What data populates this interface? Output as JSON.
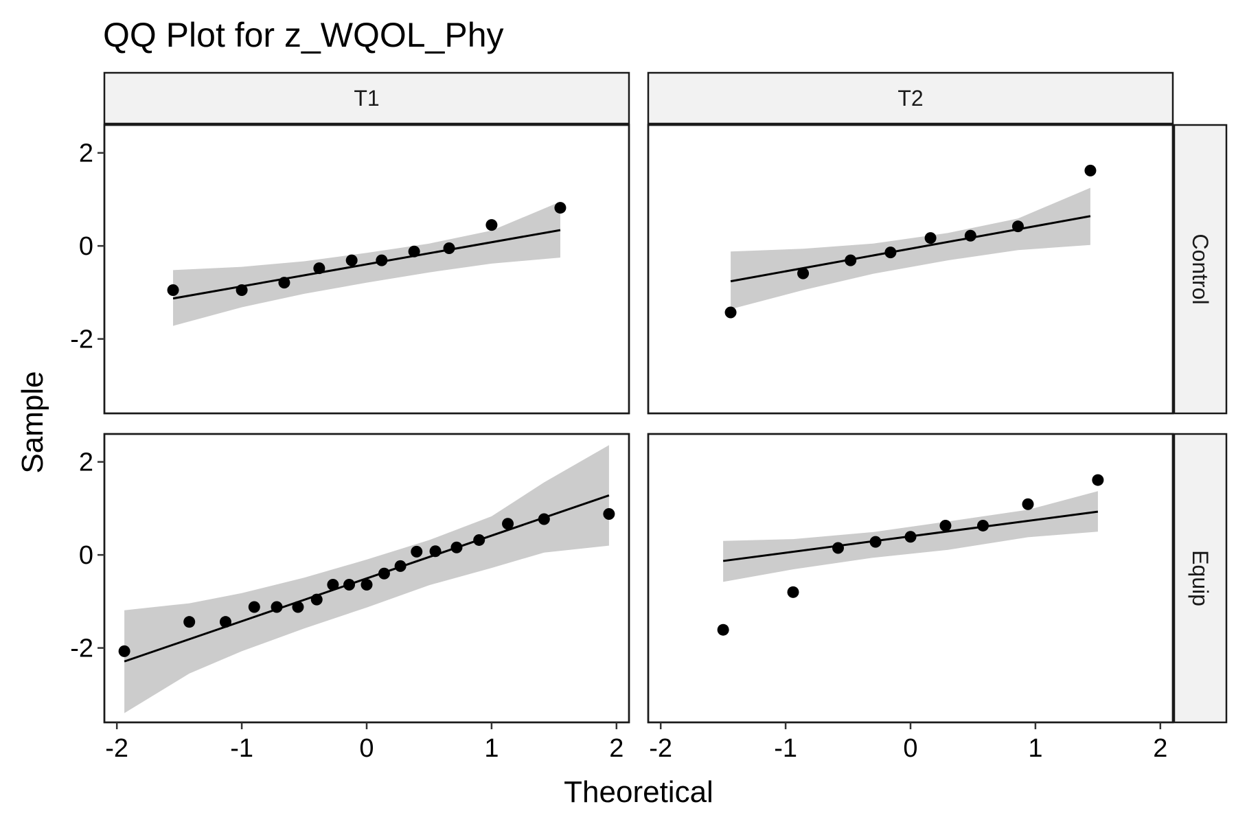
{
  "chart_data": {
    "type": "scatter",
    "subtype": "qq-facet",
    "title": "QQ Plot for z_WQOL_Phy",
    "xlabel": "Theoretical",
    "ylabel": "Sample",
    "col_facets": [
      "T1",
      "T2"
    ],
    "row_facets": [
      "Control",
      "Equip"
    ],
    "xlim": [
      -2.1,
      2.1
    ],
    "ylim": [
      -3.6,
      2.6
    ],
    "x_ticks": [
      -2,
      -1,
      0,
      1,
      2
    ],
    "y_ticks": [
      -2,
      0,
      2
    ],
    "x_tick_labels": [
      "-2",
      "-1",
      "0",
      "1",
      "2"
    ],
    "y_tick_labels": [
      "-2",
      "0",
      "2"
    ],
    "band_color": "#cccccc",
    "point_color": "#000000",
    "panels": [
      {
        "col": "T1",
        "row": "Control",
        "points": [
          [
            -1.55,
            -0.95
          ],
          [
            -1.0,
            -0.95
          ],
          [
            -0.66,
            -0.79
          ],
          [
            -0.38,
            -0.48
          ],
          [
            -0.12,
            -0.31
          ],
          [
            0.12,
            -0.31
          ],
          [
            0.38,
            -0.12
          ],
          [
            0.66,
            -0.05
          ],
          [
            1.0,
            0.45
          ],
          [
            1.55,
            0.82
          ]
        ],
        "line": [
          [
            -1.55,
            -1.13
          ],
          [
            1.55,
            0.34
          ]
        ],
        "band_upper": [
          [
            -1.55,
            -0.52
          ],
          [
            -1.0,
            -0.45
          ],
          [
            -0.5,
            -0.33
          ],
          [
            0.0,
            -0.15
          ],
          [
            0.5,
            0.05
          ],
          [
            1.0,
            0.33
          ],
          [
            1.55,
            0.95
          ]
        ],
        "band_lower": [
          [
            -1.55,
            -1.72
          ],
          [
            -1.0,
            -1.32
          ],
          [
            -0.5,
            -1.03
          ],
          [
            0.0,
            -0.79
          ],
          [
            0.5,
            -0.57
          ],
          [
            1.0,
            -0.38
          ],
          [
            1.55,
            -0.25
          ]
        ]
      },
      {
        "col": "T2",
        "row": "Control",
        "points": [
          [
            -1.44,
            -1.43
          ],
          [
            -0.86,
            -0.59
          ],
          [
            -0.48,
            -0.31
          ],
          [
            -0.16,
            -0.14
          ],
          [
            0.16,
            0.17
          ],
          [
            0.48,
            0.22
          ],
          [
            0.86,
            0.42
          ],
          [
            1.44,
            1.62
          ]
        ],
        "line": [
          [
            -1.44,
            -0.76
          ],
          [
            1.44,
            0.64
          ]
        ],
        "band_upper": [
          [
            -1.44,
            -0.12
          ],
          [
            -0.86,
            -0.06
          ],
          [
            -0.3,
            0.05
          ],
          [
            0.3,
            0.28
          ],
          [
            0.86,
            0.59
          ],
          [
            1.44,
            1.25
          ]
        ],
        "band_lower": [
          [
            -1.44,
            -1.36
          ],
          [
            -0.86,
            -0.95
          ],
          [
            -0.3,
            -0.6
          ],
          [
            0.3,
            -0.31
          ],
          [
            0.86,
            -0.09
          ],
          [
            1.44,
            0.02
          ]
        ]
      },
      {
        "col": "T1",
        "row": "Equip",
        "points": [
          [
            -1.94,
            -2.07
          ],
          [
            -1.42,
            -1.44
          ],
          [
            -1.13,
            -1.44
          ],
          [
            -0.9,
            -1.12
          ],
          [
            -0.72,
            -1.12
          ],
          [
            -0.55,
            -1.12
          ],
          [
            -0.4,
            -0.96
          ],
          [
            -0.27,
            -0.64
          ],
          [
            -0.14,
            -0.64
          ],
          [
            0.0,
            -0.64
          ],
          [
            0.14,
            -0.4
          ],
          [
            0.27,
            -0.24
          ],
          [
            0.4,
            0.07
          ],
          [
            0.55,
            0.08
          ],
          [
            0.72,
            0.16
          ],
          [
            0.9,
            0.32
          ],
          [
            1.13,
            0.67
          ],
          [
            1.42,
            0.77
          ],
          [
            1.94,
            0.88
          ]
        ],
        "line": [
          [
            -1.94,
            -2.29
          ],
          [
            1.94,
            1.28
          ]
        ],
        "band_upper": [
          [
            -1.94,
            -1.19
          ],
          [
            -1.42,
            -1.04
          ],
          [
            -1.0,
            -0.82
          ],
          [
            -0.5,
            -0.49
          ],
          [
            0.0,
            -0.1
          ],
          [
            0.5,
            0.32
          ],
          [
            1.0,
            0.83
          ],
          [
            1.42,
            1.56
          ],
          [
            1.94,
            2.36
          ]
        ],
        "band_lower": [
          [
            -1.94,
            -3.4
          ],
          [
            -1.42,
            -2.55
          ],
          [
            -1.0,
            -2.07
          ],
          [
            -0.5,
            -1.58
          ],
          [
            0.0,
            -1.13
          ],
          [
            0.5,
            -0.65
          ],
          [
            1.0,
            -0.28
          ],
          [
            1.42,
            0.05
          ],
          [
            1.94,
            0.2
          ]
        ]
      },
      {
        "col": "T2",
        "row": "Equip",
        "points": [
          [
            -1.5,
            -1.61
          ],
          [
            -0.94,
            -0.8
          ],
          [
            -0.58,
            0.15
          ],
          [
            -0.28,
            0.28
          ],
          [
            0.0,
            0.39
          ],
          [
            0.28,
            0.63
          ],
          [
            0.58,
            0.63
          ],
          [
            0.94,
            1.09
          ],
          [
            1.5,
            1.61
          ]
        ],
        "line": [
          [
            -1.5,
            -0.13
          ],
          [
            1.5,
            0.93
          ]
        ],
        "band_upper": [
          [
            -1.5,
            0.3
          ],
          [
            -0.94,
            0.34
          ],
          [
            -0.3,
            0.49
          ],
          [
            0.3,
            0.72
          ],
          [
            0.94,
            0.97
          ],
          [
            1.5,
            1.37
          ]
        ],
        "band_lower": [
          [
            -1.5,
            -0.58
          ],
          [
            -0.94,
            -0.31
          ],
          [
            -0.3,
            -0.06
          ],
          [
            0.3,
            0.11
          ],
          [
            0.94,
            0.38
          ],
          [
            1.5,
            0.5
          ]
        ]
      }
    ]
  }
}
